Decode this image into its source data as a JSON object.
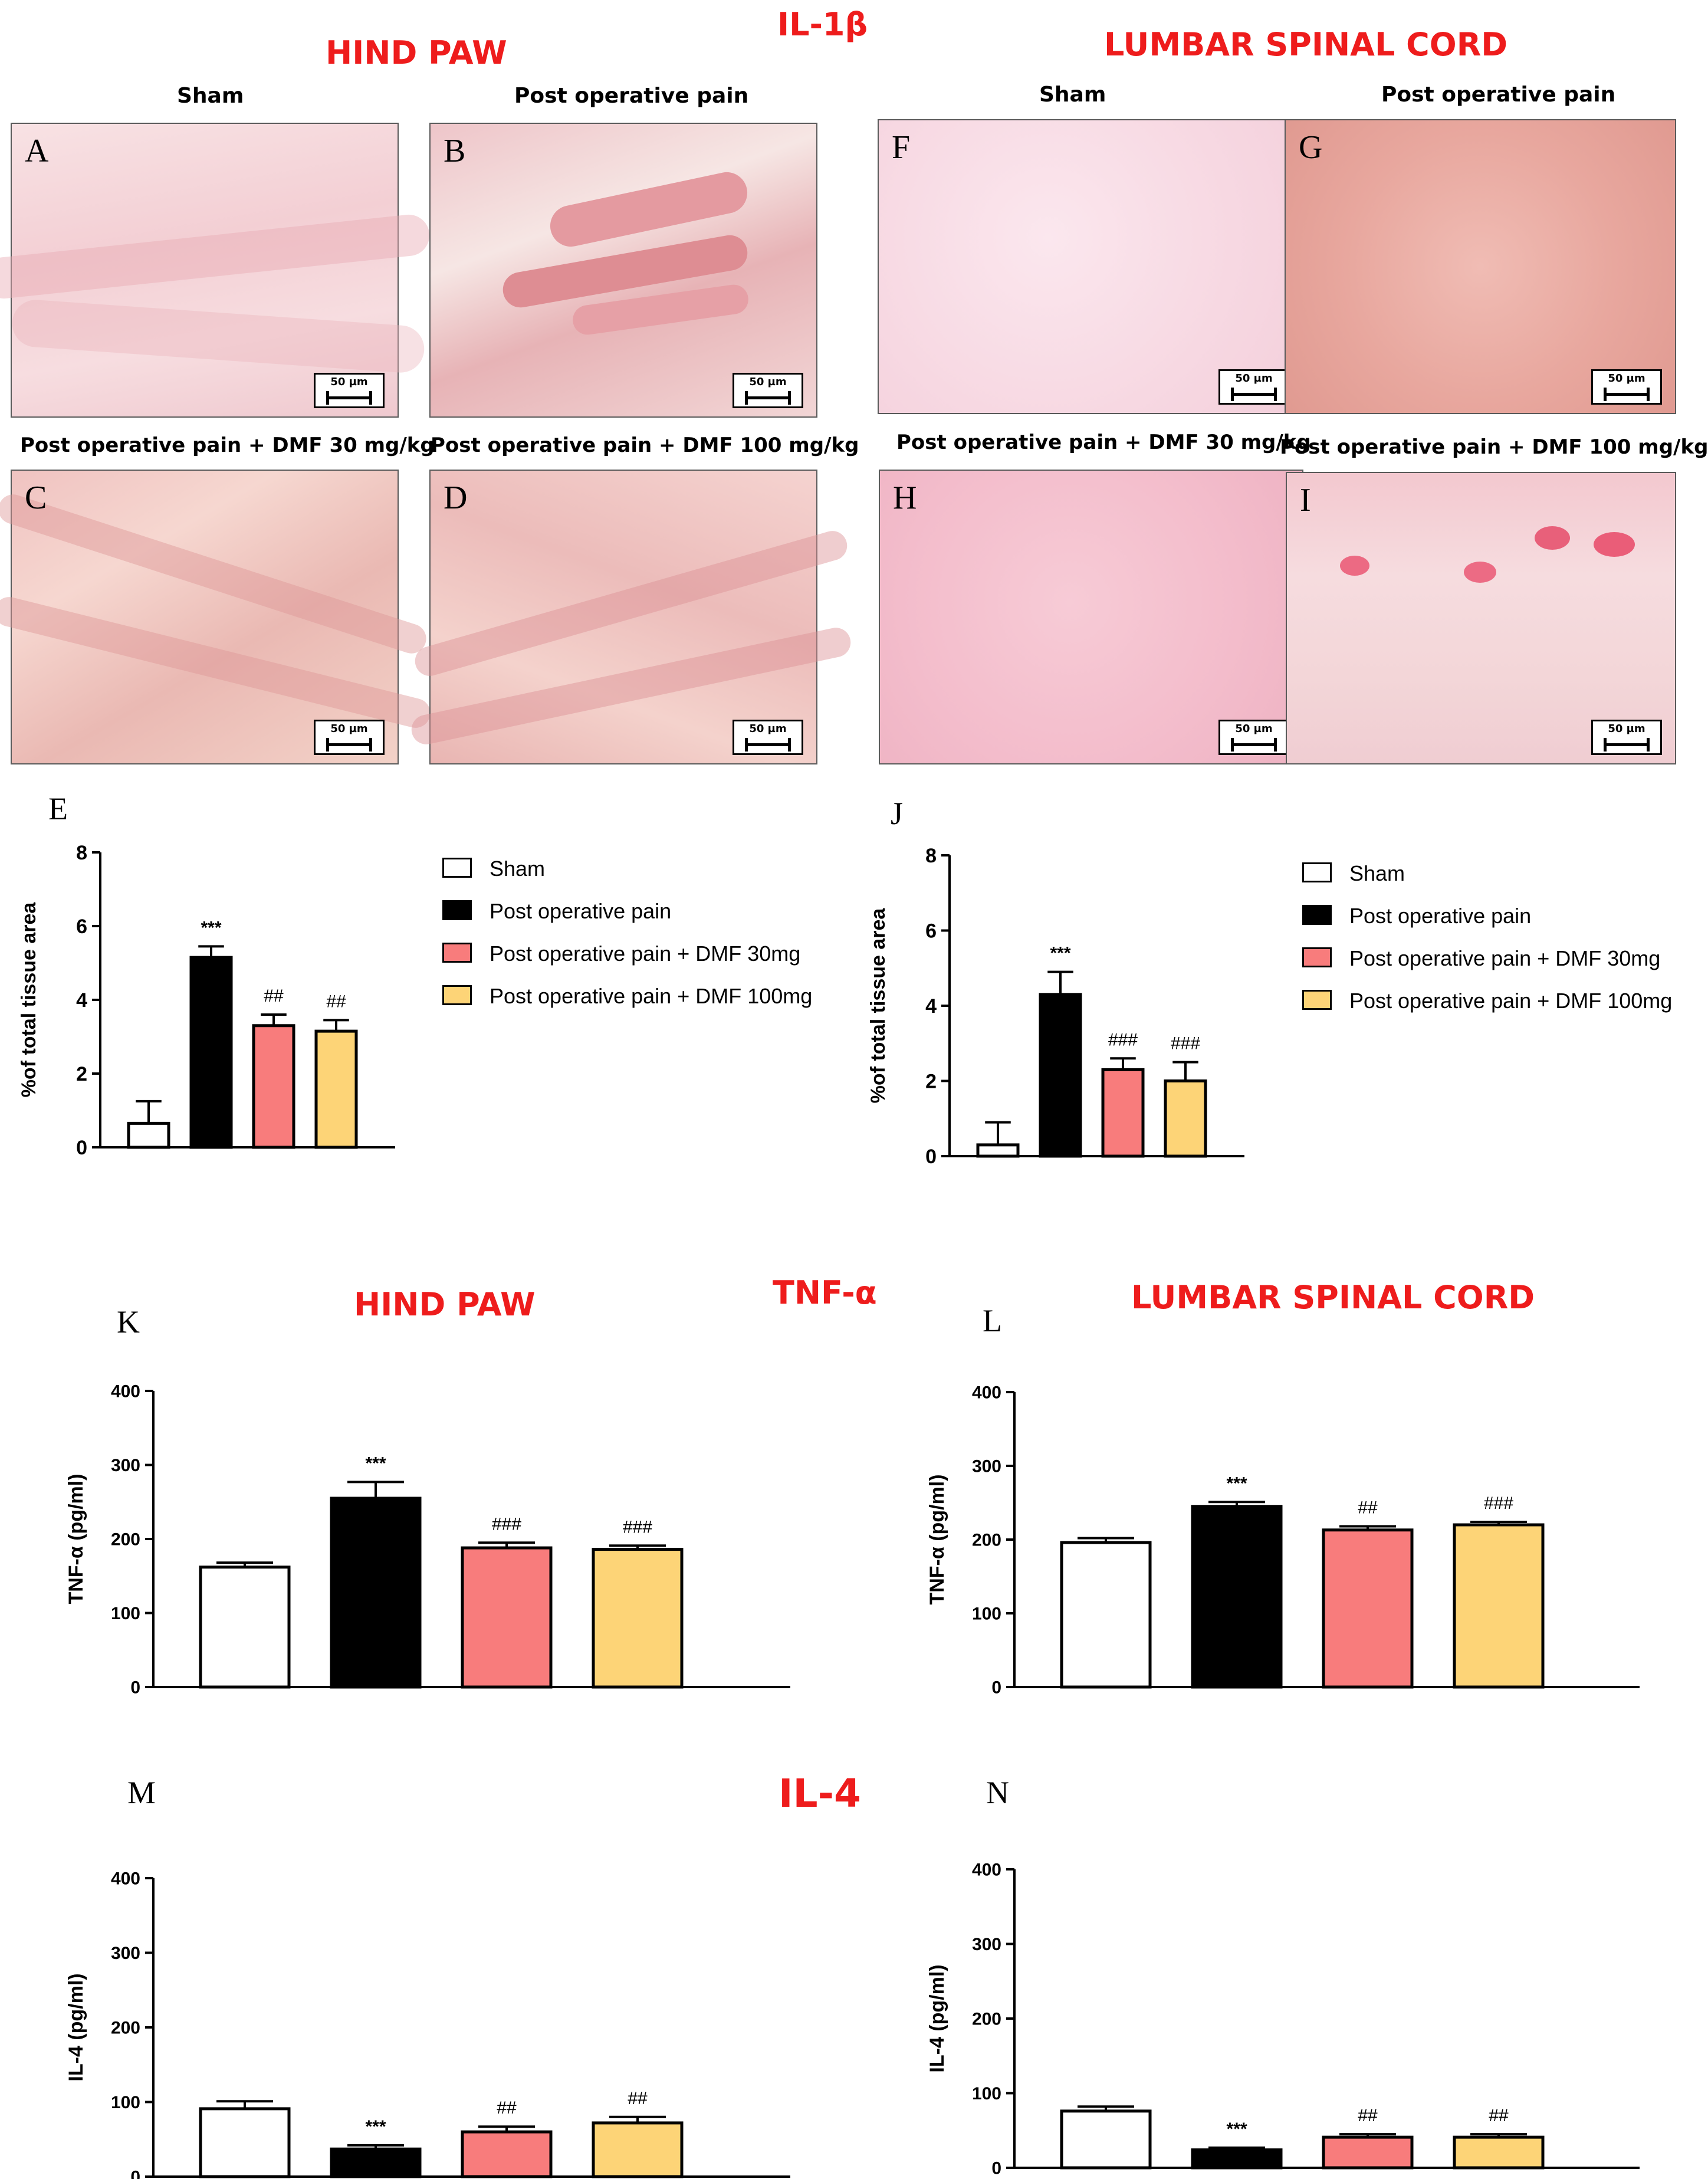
{
  "titles": {
    "il1b": "IL-1β",
    "tnfa": "TNF-α",
    "il4": "IL-4",
    "hind_paw_top": "HIND PAW",
    "spinal_top": "LUMBAR SPINAL CORD",
    "hind_paw_mid": "HIND PAW",
    "spinal_mid": "LUMBAR SPINAL CORD"
  },
  "micrographs": [
    {
      "letter": "A",
      "caption": "Sham",
      "scale": "50 µm"
    },
    {
      "letter": "B",
      "caption": "Post operative pain",
      "scale": "50 µm"
    },
    {
      "letter": "C",
      "caption": "Post operative pain + DMF 30 mg/kg",
      "scale": "50 µm"
    },
    {
      "letter": "D",
      "caption": "Post operative pain + DMF 100 mg/kg",
      "scale": "50 µm"
    },
    {
      "letter": "F",
      "caption": "Sham",
      "scale": "50 µm"
    },
    {
      "letter": "G",
      "caption": "Post operative pain",
      "scale": "50 µm"
    },
    {
      "letter": "H",
      "caption": "Post operative pain + DMF 30 mg/kg",
      "scale": "50 µm"
    },
    {
      "letter": "I",
      "caption": "Post operative pain + DMF 100 mg/kg",
      "scale": "50 µm"
    }
  ],
  "legend": [
    {
      "label": "Sham",
      "color": "#ffffff"
    },
    {
      "label": "Post operative pain",
      "color": "#000000"
    },
    {
      "label": "Post operative pain + DMF 30mg",
      "color": "#f87c7c"
    },
    {
      "label": "Post operative pain + DMF 100mg",
      "color": "#fdd477"
    }
  ],
  "chart_data": [
    {
      "panel": "E",
      "type": "bar",
      "ylabel": "%of total tissue area",
      "ylim": [
        0,
        8
      ],
      "ticks": [
        0,
        2,
        4,
        6,
        8
      ],
      "values": [
        0.65,
        5.15,
        3.3,
        3.15
      ],
      "errors": [
        0.6,
        0.3,
        0.3,
        0.3
      ],
      "annotations": [
        "",
        "***",
        "##",
        "##"
      ]
    },
    {
      "panel": "J",
      "type": "bar",
      "ylabel": "%of total tissue area",
      "ylim": [
        0,
        8
      ],
      "ticks": [
        0,
        2,
        4,
        6,
        8
      ],
      "values": [
        0.3,
        4.3,
        2.3,
        2.0
      ],
      "errors": [
        0.6,
        0.6,
        0.3,
        0.5
      ],
      "annotations": [
        "",
        "***",
        "###",
        "###"
      ]
    },
    {
      "panel": "K",
      "type": "bar",
      "ylabel": "TNF-α (pg/ml)",
      "ylim": [
        0,
        400
      ],
      "ticks": [
        0,
        100,
        200,
        300,
        400
      ],
      "values": [
        162,
        255,
        188,
        186
      ],
      "errors": [
        6,
        22,
        7,
        5
      ],
      "annotations": [
        "",
        "***",
        "###",
        "###"
      ]
    },
    {
      "panel": "L",
      "type": "bar",
      "ylabel": "TNF-α (pg/ml)",
      "ylim": [
        0,
        400
      ],
      "ticks": [
        0,
        100,
        200,
        300,
        400
      ],
      "values": [
        196,
        245,
        213,
        220
      ],
      "errors": [
        6,
        6,
        5,
        4
      ],
      "annotations": [
        "",
        "***",
        "##",
        "###"
      ]
    },
    {
      "panel": "M",
      "type": "bar",
      "ylabel": "IL-4 (pg/ml)",
      "ylim": [
        0,
        400
      ],
      "ticks": [
        0,
        100,
        200,
        300,
        400
      ],
      "values": [
        91,
        37,
        60,
        72
      ],
      "errors": [
        10,
        5,
        7,
        8
      ],
      "annotations": [
        "",
        "***",
        "##",
        "##"
      ]
    },
    {
      "panel": "N",
      "type": "bar",
      "ylabel": "IL-4 (pg/ml)",
      "ylim": [
        0,
        400
      ],
      "ticks": [
        0,
        100,
        200,
        300,
        400
      ],
      "values": [
        76,
        24,
        41,
        41
      ],
      "errors": [
        6,
        3,
        4,
        4
      ],
      "annotations": [
        "",
        "***",
        "##",
        "##"
      ]
    }
  ]
}
